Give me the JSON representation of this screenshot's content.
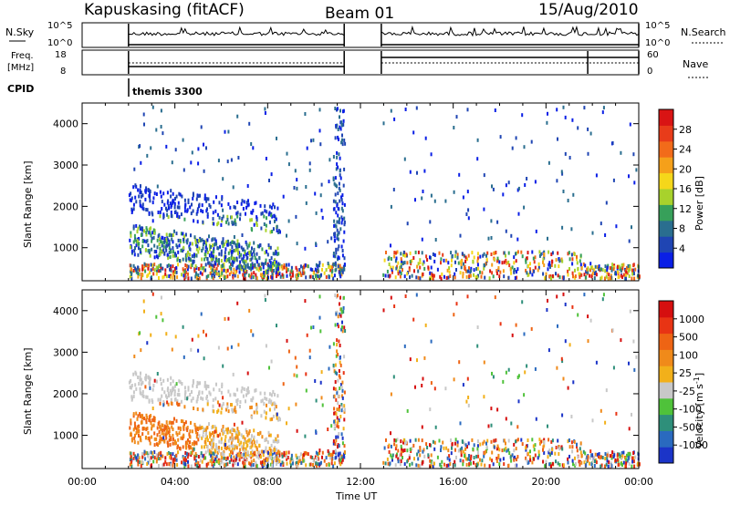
{
  "header": {
    "station": "Kapuskasing (fitACF)",
    "beam": "Beam 01",
    "date": "15/Aug/2010"
  },
  "chart_data": [
    {
      "type": "line",
      "panel": "noise",
      "left_label": "N.Sky",
      "right_label": "N.Search",
      "y_ticks": [
        "10^5",
        "10^0"
      ],
      "segments_hours": [
        [
          2.0,
          11.3
        ],
        [
          12.9,
          24.0
        ]
      ],
      "x_range": [
        0,
        24
      ]
    },
    {
      "type": "line",
      "panel": "frequency",
      "left_label_lines": [
        "Freq.",
        "[MHz]"
      ],
      "right_label": "Nave",
      "left_ticks": [
        18,
        8
      ],
      "right_ticks": [
        60,
        0
      ],
      "segments_hours": [
        [
          2.0,
          11.3
        ],
        [
          12.9,
          24.0
        ]
      ]
    },
    {
      "type": "heatmap",
      "panel": "cpid",
      "left_label": "CPID",
      "mode_label": "themis 3300",
      "mode_start_hour": 2.0
    },
    {
      "type": "heatmap",
      "panel": "power",
      "ylabel": "Slant Range [km]",
      "y_ticks": [
        1000,
        2000,
        3000,
        4000
      ],
      "colorbar_label": "Power [dB]",
      "colorbar_ticks": [
        "4",
        "8",
        "12",
        "16",
        "20",
        "24",
        "28"
      ],
      "colorbar_colors": [
        "#0a1fe6",
        "#1f45b3",
        "#2a6e8f",
        "#37a05a",
        "#a8d22c",
        "#f5d71a",
        "#f5a01a",
        "#f26b1a",
        "#e83c1a",
        "#d91414"
      ]
    },
    {
      "type": "heatmap",
      "panel": "velocity",
      "ylabel": "Slant Range [km]",
      "y_ticks": [
        1000,
        2000,
        3000,
        4000
      ],
      "colorbar_label": "Velocity [m s",
      "colorbar_label_sup": "-1",
      "colorbar_label_end": "]",
      "colorbar_ticks": [
        "1000",
        "500",
        "100",
        "25",
        "-25",
        "-100",
        "-500",
        "-1000"
      ],
      "colorbar_colors": [
        "#1b34c8",
        "#2a6abf",
        "#2e8f7a",
        "#4fc23a",
        "#c8c8c8",
        "#f2b01a",
        "#f08a1a",
        "#ee6414",
        "#e83414",
        "#d60f0f"
      ],
      "x_ticks": [
        "00:00",
        "04:00",
        "08:00",
        "12:00",
        "16:00",
        "20:00",
        "00:00"
      ],
      "x_tick_hours": [
        0,
        4,
        8,
        12,
        16,
        20,
        24
      ],
      "xlabel": "Time UT",
      "x_range": [
        0,
        24
      ],
      "y_range": [
        200,
        4500
      ]
    }
  ]
}
